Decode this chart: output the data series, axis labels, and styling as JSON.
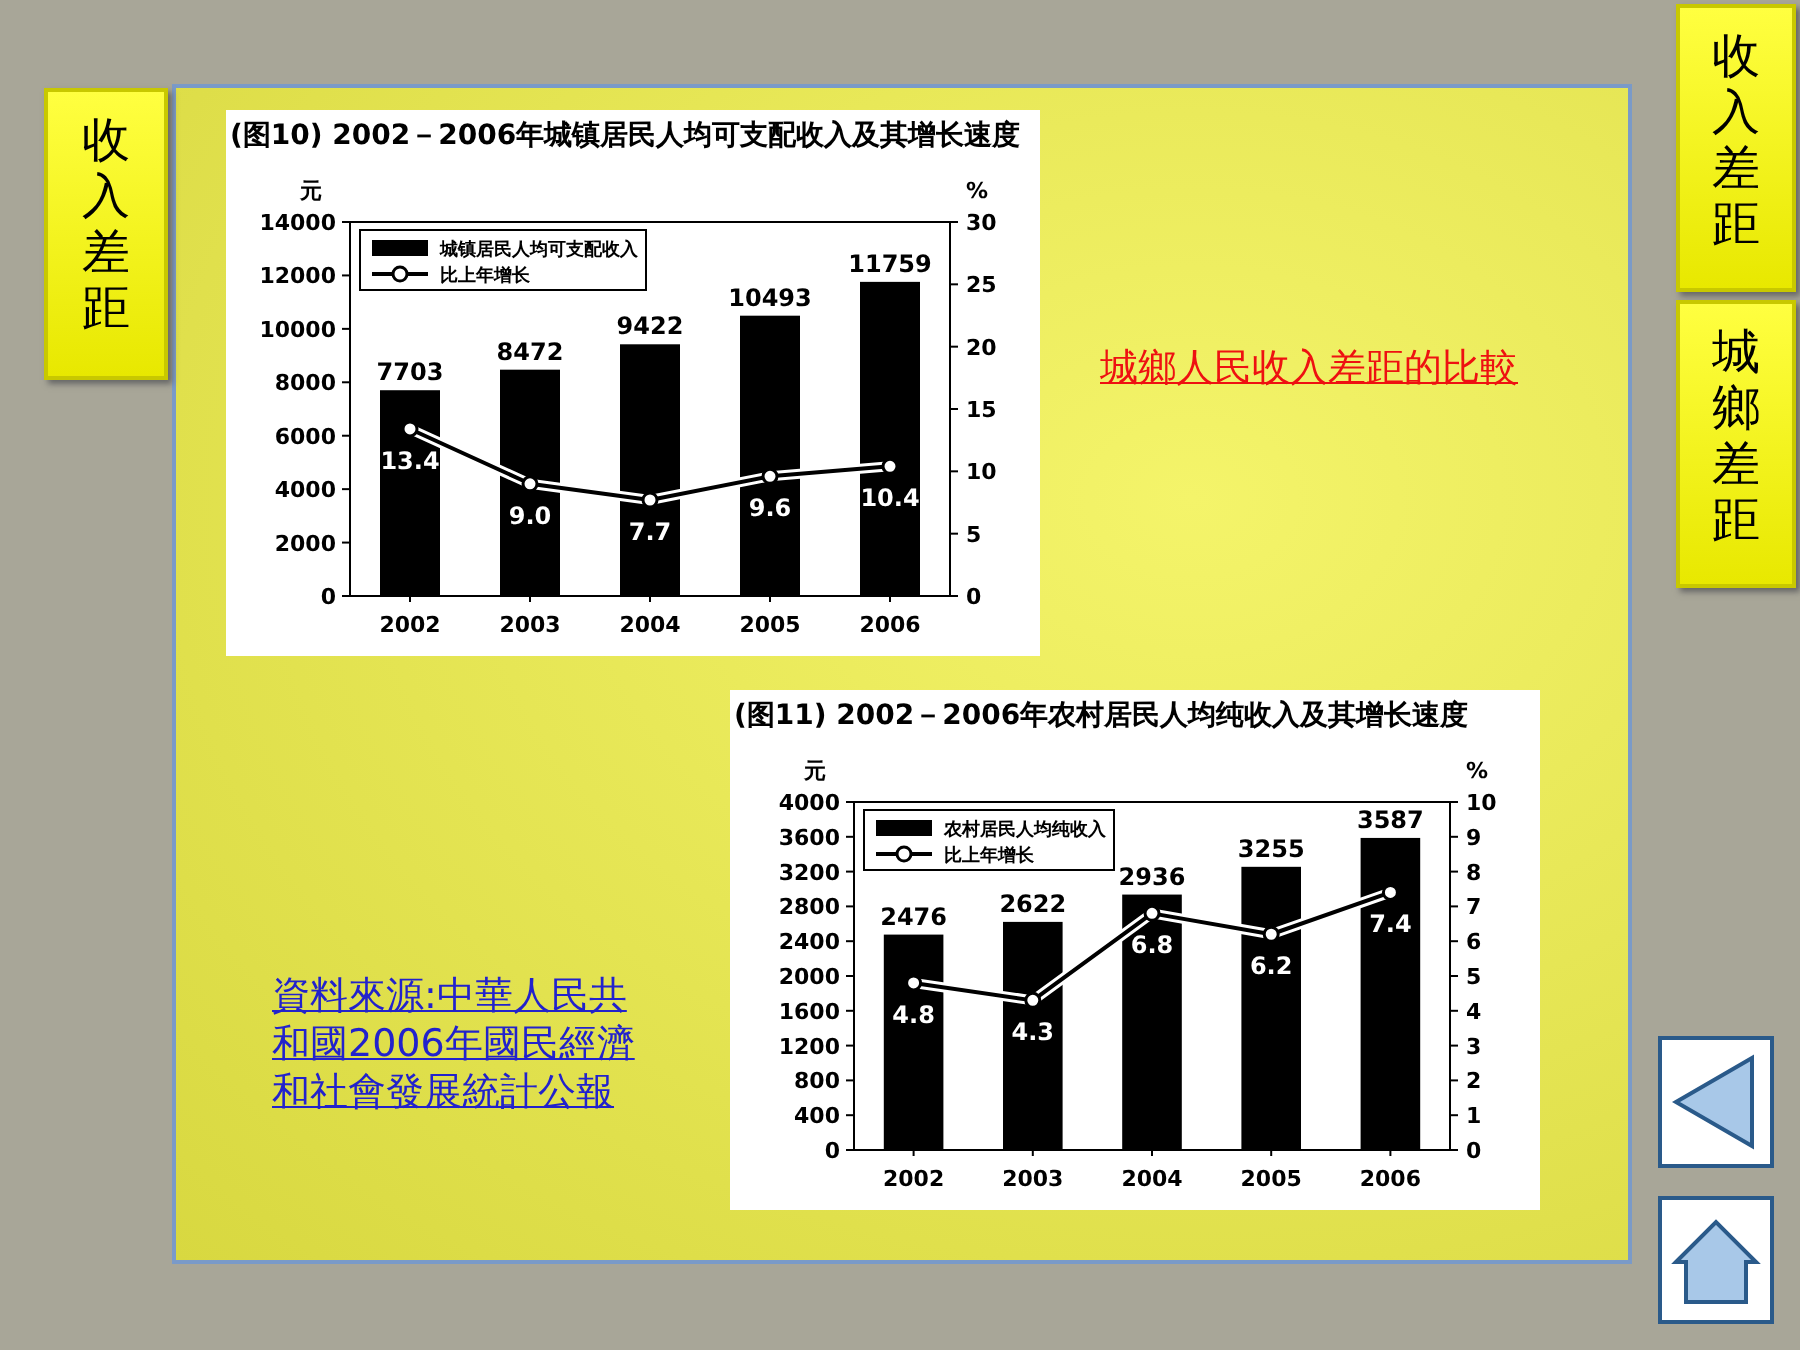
{
  "chart_data": [
    {
      "type": "bar",
      "title": "(图10) 2002－2006年城镇居民人均可支配收入及其增长速度",
      "ylabel": "元",
      "y2label": "%",
      "categories": [
        "2002",
        "2003",
        "2004",
        "2005",
        "2006"
      ],
      "series": [
        {
          "name": "城镇居民人均可支配收入",
          "type": "bar",
          "color": "#000000",
          "values": [
            7703,
            8472,
            9422,
            10493,
            11759
          ],
          "value_labels": [
            "7703",
            "8472",
            "9422",
            "10493",
            "11759"
          ]
        },
        {
          "name": "比上年增长",
          "type": "line",
          "axis": "y2",
          "color": "#000000",
          "values": [
            13.4,
            9.0,
            7.7,
            9.6,
            10.4
          ],
          "value_labels": [
            "13.4",
            "9.0",
            "7.7",
            "9.6",
            "10.4"
          ]
        }
      ],
      "ylim": [
        0,
        14000
      ],
      "yticks": [
        0,
        2000,
        4000,
        6000,
        8000,
        10000,
        12000,
        14000
      ],
      "y2lim": [
        0,
        30
      ],
      "y2ticks": [
        0,
        5,
        10,
        15,
        20,
        25,
        30
      ],
      "legend": "top left",
      "marker": "circle"
    },
    {
      "type": "bar",
      "title": "(图11) 2002－2006年农村居民人均纯收入及其增长速度",
      "ylabel": "元",
      "y2label": "%",
      "categories": [
        "2002",
        "2003",
        "2004",
        "2005",
        "2006"
      ],
      "series": [
        {
          "name": "农村居民人均纯收入",
          "type": "bar",
          "color": "#000000",
          "values": [
            2476,
            2622,
            2936,
            3255,
            3587
          ],
          "value_labels": [
            "2476",
            "2622",
            "2936",
            "3255",
            "3587"
          ]
        },
        {
          "name": "比上年增长",
          "type": "line",
          "axis": "y2",
          "color": "#000000",
          "values": [
            4.8,
            4.3,
            6.8,
            6.2,
            7.4
          ],
          "value_labels": [
            "4.8",
            "4.3",
            "6.8",
            "6.2",
            "7.4"
          ]
        }
      ],
      "ylim": [
        0,
        4000
      ],
      "yticks": [
        0,
        400,
        800,
        1200,
        1600,
        2000,
        2400,
        2800,
        3200,
        3600,
        4000
      ],
      "y2lim": [
        0,
        10
      ],
      "y2ticks": [
        0,
        1,
        2,
        3,
        4,
        5,
        6,
        7,
        8,
        9,
        10
      ],
      "legend": "top left",
      "marker": "circle"
    },
    {
      "type": "other",
      "annotations": [
        "收入差距",
        "收入差距",
        "城鄉差距",
        "城鄉人民收入差距的比較",
        "資料來源:中華人民共和國2006年國民經濟和社會發展統計公報"
      ]
    }
  ]
}
